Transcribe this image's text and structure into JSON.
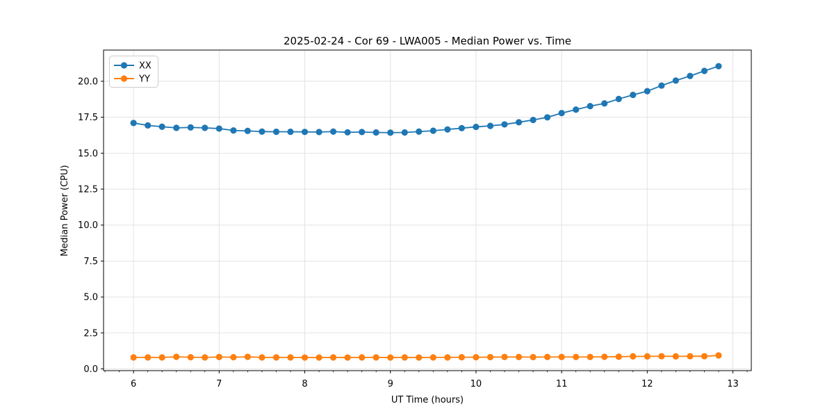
{
  "chart_data": {
    "type": "line",
    "title": "2025-02-24 - Cor 69 - LWA005 - Median Power vs. Time",
    "xlabel": "UT Time (hours)",
    "ylabel": "Median Power (CPU)",
    "xlim": [
      5.65,
      13.215
    ],
    "ylim": [
      -0.12,
      22.17
    ],
    "grid": true,
    "grid_color": "#e0e0e0",
    "spine_color": "#000000",
    "text_color": "#000000",
    "legend_position": "upper left",
    "minor_xtick_step": 0.1666667,
    "xticks": {
      "values": [
        6,
        7,
        8,
        9,
        10,
        11,
        12,
        13
      ],
      "labels": [
        "6",
        "7",
        "8",
        "9",
        "10",
        "11",
        "12",
        "13"
      ]
    },
    "yticks": {
      "values": [
        0,
        2.5,
        5,
        7.5,
        10,
        12.5,
        15,
        17.5,
        20
      ],
      "labels": [
        "0.0",
        "2.5",
        "5.0",
        "7.5",
        "10.0",
        "12.5",
        "15.0",
        "17.5",
        "20.0"
      ]
    },
    "x": [
      6.0,
      6.167,
      6.333,
      6.5,
      6.667,
      6.833,
      7.0,
      7.167,
      7.333,
      7.5,
      7.667,
      7.833,
      8.0,
      8.167,
      8.333,
      8.5,
      8.667,
      8.833,
      9.0,
      9.167,
      9.333,
      9.5,
      9.667,
      9.833,
      10.0,
      10.167,
      10.333,
      10.5,
      10.667,
      10.833,
      11.0,
      11.167,
      11.333,
      11.5,
      11.667,
      11.833,
      12.0,
      12.167,
      12.333,
      12.5,
      12.667,
      12.833
    ],
    "series": [
      {
        "name": "XX",
        "color": "#1f77b4",
        "values": [
          17.1,
          16.93,
          16.84,
          16.76,
          16.79,
          16.76,
          16.71,
          16.58,
          16.55,
          16.5,
          16.49,
          16.49,
          16.48,
          16.47,
          16.5,
          16.45,
          16.47,
          16.44,
          16.43,
          16.44,
          16.5,
          16.56,
          16.65,
          16.74,
          16.83,
          16.9,
          17.0,
          17.15,
          17.31,
          17.49,
          17.79,
          18.03,
          18.27,
          18.46,
          18.77,
          19.05,
          19.31,
          19.7,
          20.05,
          20.37,
          20.72,
          21.05
        ]
      },
      {
        "name": "YY",
        "color": "#ff7f0e",
        "values": [
          0.8,
          0.8,
          0.8,
          0.84,
          0.81,
          0.8,
          0.83,
          0.81,
          0.84,
          0.8,
          0.8,
          0.8,
          0.79,
          0.79,
          0.8,
          0.79,
          0.8,
          0.8,
          0.79,
          0.8,
          0.79,
          0.8,
          0.8,
          0.81,
          0.81,
          0.82,
          0.83,
          0.83,
          0.82,
          0.83,
          0.83,
          0.83,
          0.83,
          0.84,
          0.85,
          0.87,
          0.87,
          0.88,
          0.87,
          0.88,
          0.88,
          0.94
        ]
      }
    ]
  }
}
